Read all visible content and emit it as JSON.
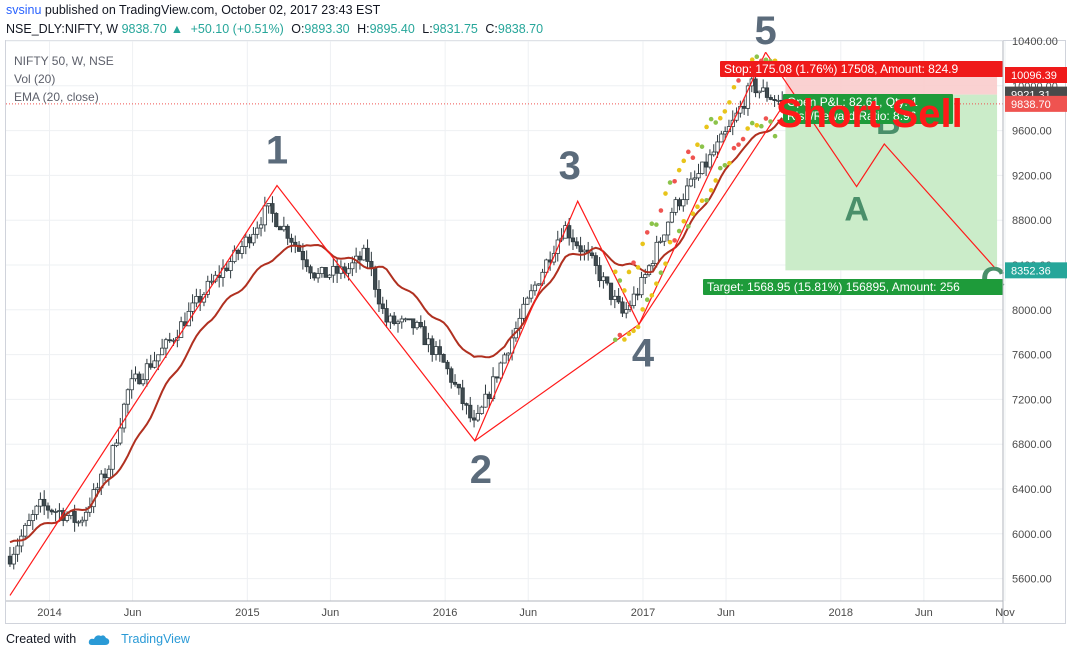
{
  "header": {
    "user": "svsinu",
    "published_text": "published on TradingView.com, October 02, 2017 23:43 EST",
    "symbol": "NSE_DLY:NIFTY, W",
    "last": "9838.70",
    "change": "+50.10 (+0.51%)",
    "open_label": "O:",
    "open": "9893.30",
    "high_label": "H:",
    "high": "9895.40",
    "low_label": "L:",
    "low": "9831.75",
    "close_label": "C:",
    "close": "9838.70"
  },
  "legend": {
    "title": "NIFTY 50, W, NSE",
    "vol": "Vol (20)",
    "ema": "EMA (20, close)"
  },
  "footer": {
    "created_with": "Created with",
    "brand": "TradingView"
  },
  "colors": {
    "up": "#26a69a",
    "down": "#ef5350",
    "wave": "#ff1a1a",
    "ema": "#b03020",
    "target_zone": "#c8ebc6",
    "stop_zone": "#f9cccc",
    "wave_label": "#5b6b7b"
  },
  "chart_data": {
    "type": "candlestick",
    "ylim": [
      5400,
      10400
    ],
    "y_ticks": [
      5600,
      6000,
      6400,
      6800,
      7200,
      7600,
      8000,
      8400,
      8800,
      9200,
      9600,
      10000,
      10400
    ],
    "y_tick_labels": [
      "5600.00",
      "6000.00",
      "6400.00",
      "6800.00",
      "7200.00",
      "7600.00",
      "8000.00",
      "8400.00",
      "8800.00",
      "9200.00",
      "9600.00",
      "10000.00",
      "10400.00"
    ],
    "x_ticks": [
      {
        "label": "2014",
        "t": 2014.0
      },
      {
        "label": "Jun",
        "t": 2014.42
      },
      {
        "label": "2015",
        "t": 2015.0
      },
      {
        "label": "Jun",
        "t": 2015.42
      },
      {
        "label": "2016",
        "t": 2016.0
      },
      {
        "label": "Jun",
        "t": 2016.42
      },
      {
        "label": "2017",
        "t": 2017.0
      },
      {
        "label": "Jun",
        "t": 2017.42
      },
      {
        "label": "2018",
        "t": 2018.0
      },
      {
        "label": "Jun",
        "t": 2018.42
      },
      {
        "label": "Nov",
        "t": 2018.83
      }
    ],
    "xlim": [
      2013.78,
      2018.82
    ],
    "price_anchors": [
      [
        2013.8,
        5800
      ],
      [
        2013.95,
        6250
      ],
      [
        2014.05,
        6200
      ],
      [
        2014.15,
        6100
      ],
      [
        2014.3,
        6600
      ],
      [
        2014.4,
        7300
      ],
      [
        2014.6,
        7700
      ],
      [
        2014.8,
        8200
      ],
      [
        2014.95,
        8500
      ],
      [
        2015.1,
        8900
      ],
      [
        2015.2,
        8700
      ],
      [
        2015.35,
        8300
      ],
      [
        2015.5,
        8350
      ],
      [
        2015.6,
        8500
      ],
      [
        2015.7,
        7900
      ],
      [
        2015.85,
        7850
      ],
      [
        2016.0,
        7500
      ],
      [
        2016.15,
        6950
      ],
      [
        2016.3,
        7600
      ],
      [
        2016.45,
        8200
      ],
      [
        2016.6,
        8750
      ],
      [
        2016.75,
        8400
      ],
      [
        2016.9,
        7950
      ],
      [
        2017.0,
        8250
      ],
      [
        2017.15,
        8900
      ],
      [
        2017.3,
        9250
      ],
      [
        2017.45,
        9650
      ],
      [
        2017.55,
        10000
      ],
      [
        2017.65,
        9900
      ],
      [
        2017.72,
        9838.7
      ]
    ],
    "ema_anchors": [
      [
        2013.8,
        5900
      ],
      [
        2014.0,
        6100
      ],
      [
        2014.2,
        6250
      ],
      [
        2014.4,
        6700
      ],
      [
        2014.6,
        7350
      ],
      [
        2014.8,
        7900
      ],
      [
        2015.0,
        8250
      ],
      [
        2015.15,
        8500
      ],
      [
        2015.3,
        8600
      ],
      [
        2015.5,
        8450
      ],
      [
        2015.7,
        8350
      ],
      [
        2015.85,
        8100
      ],
      [
        2016.0,
        7850
      ],
      [
        2016.15,
        7550
      ],
      [
        2016.3,
        7650
      ],
      [
        2016.45,
        8050
      ],
      [
        2016.6,
        8450
      ],
      [
        2016.75,
        8550
      ],
      [
        2016.9,
        8400
      ],
      [
        2017.05,
        8350
      ],
      [
        2017.2,
        8650
      ],
      [
        2017.35,
        9050
      ],
      [
        2017.5,
        9450
      ],
      [
        2017.72,
        9720
      ]
    ],
    "wave_count": [
      {
        "label": "",
        "t": 2013.8,
        "y": 5450
      },
      {
        "label": "1",
        "t": 2015.15,
        "y": 9110
      },
      {
        "label": "2",
        "t": 2016.15,
        "y": 6830
      },
      {
        "label": "3",
        "t": 2016.67,
        "y": 8970
      },
      {
        "label": "4",
        "t": 2016.98,
        "y": 7870
      },
      {
        "label": "5",
        "t": 2017.62,
        "y": 10300
      }
    ],
    "projection": [
      {
        "label": "",
        "t": 2017.62,
        "y": 10300
      },
      {
        "label": "A",
        "t": 2018.08,
        "y": 9100
      },
      {
        "label": "B",
        "t": 2018.22,
        "y": 9480
      },
      {
        "label": "C",
        "t": 2018.79,
        "y": 8352
      }
    ],
    "position": {
      "entry": 9921.31,
      "stop": 10096.39,
      "target": 8352.36,
      "t_start": 2017.72,
      "t_end": 2018.79,
      "stop_text": "Stop: 175.08 (1.76%) 17508, Amount: 824.9",
      "open_pl_text": "Open P&L: 82.61, Qty: 1",
      "rr_text": "Risk/Reward Ratio: 8.96",
      "target_text": "Target: 1568.95 (15.81%) 156895, Amount: 256"
    },
    "price_labels": [
      {
        "value": 10096.39,
        "text": "10096.39",
        "color": "#ef1a1a"
      },
      {
        "value": 9921.31,
        "text": "9921.31",
        "color": "#4a4a4a"
      },
      {
        "value": 9838.7,
        "text": "9838.70",
        "color": "#ef5350"
      },
      {
        "value": 8352.36,
        "text": "8352.36",
        "color": "#26a69a"
      }
    ],
    "annotation": "Short Sell"
  }
}
